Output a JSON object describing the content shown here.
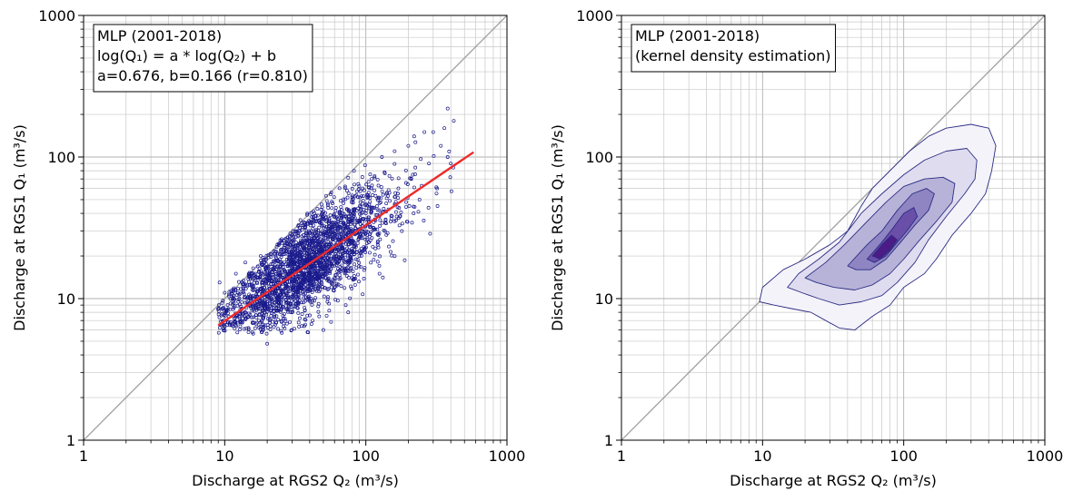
{
  "chart_data": [
    {
      "type": "scatter",
      "title": "",
      "xlabel": "Discharge at RGS2 Q₂ (m³/s)",
      "ylabel": "Discharge at RGS1 Q₁ (m³/s)",
      "xscale": "log",
      "yscale": "log",
      "xlim": [
        1,
        1000
      ],
      "ylim": [
        1,
        1000
      ],
      "xticks": [
        "1",
        "10",
        "100",
        "1000"
      ],
      "yticks": [
        "1",
        "10",
        "100",
        "1000"
      ],
      "grid": "major and minor",
      "annotation": {
        "line1": "MLP (2001-2018)",
        "line2": "log(Q₁) = a * log(Q₂) + b",
        "line3": "a=0.676, b=0.166 (r=0.810)"
      },
      "identity_line": {
        "x": [
          1,
          1000
        ],
        "y": [
          1,
          1000
        ],
        "color": "#a0a0a0"
      },
      "fit_line": {
        "a": 0.676,
        "b": 0.166,
        "x": [
          9,
          580
        ],
        "color": "#ee2a2a"
      },
      "scatter_points_shown": [
        [
          20,
          4.8
        ],
        [
          9.2,
          13
        ],
        [
          10,
          11
        ],
        [
          12,
          15
        ],
        [
          14,
          18
        ],
        [
          16,
          10
        ],
        [
          18,
          20
        ],
        [
          20,
          14
        ],
        [
          22,
          9
        ],
        [
          25,
          22
        ],
        [
          28,
          17
        ],
        [
          30,
          8
        ],
        [
          32,
          25
        ],
        [
          35,
          12
        ],
        [
          38,
          30
        ],
        [
          40,
          20
        ],
        [
          42,
          7
        ],
        [
          45,
          28
        ],
        [
          48,
          18
        ],
        [
          50,
          6
        ],
        [
          55,
          35
        ],
        [
          58,
          22
        ],
        [
          60,
          14
        ],
        [
          65,
          40
        ],
        [
          70,
          25
        ],
        [
          72,
          9
        ],
        [
          75,
          8
        ],
        [
          80,
          50
        ],
        [
          85,
          30
        ],
        [
          90,
          20
        ],
        [
          95,
          60
        ],
        [
          100,
          40
        ],
        [
          105,
          25
        ],
        [
          110,
          70
        ],
        [
          120,
          45
        ],
        [
          125,
          15
        ],
        [
          130,
          100
        ],
        [
          140,
          55
        ],
        [
          150,
          35
        ],
        [
          160,
          110
        ],
        [
          170,
          60
        ],
        [
          180,
          30
        ],
        [
          200,
          120
        ],
        [
          210,
          70
        ],
        [
          220,
          140
        ],
        [
          240,
          50
        ],
        [
          260,
          150
        ],
        [
          280,
          90
        ],
        [
          300,
          150
        ],
        [
          320,
          60
        ],
        [
          340,
          120
        ],
        [
          360,
          160
        ],
        [
          380,
          100
        ],
        [
          400,
          90
        ],
        [
          380,
          220
        ],
        [
          420,
          180
        ]
      ],
      "marker_color": "#1a1a8c"
    },
    {
      "type": "heatmap",
      "title": "",
      "xlabel": "Discharge at RGS2 Q₂ (m³/s)",
      "ylabel": "Discharge at RGS1 Q₁ (m³/s)",
      "xscale": "log",
      "yscale": "log",
      "xlim": [
        1,
        1000
      ],
      "ylim": [
        1,
        1000
      ],
      "xticks": [
        "1",
        "10",
        "100",
        "1000"
      ],
      "yticks": [
        "1",
        "10",
        "100",
        "1000"
      ],
      "grid": "major and minor",
      "annotation": {
        "line1": "MLP (2001-2018)",
        "line2": "(kernel density estimation)"
      },
      "identity_line": {
        "x": [
          1,
          1000
        ],
        "y": [
          1,
          1000
        ],
        "color": "#a0a0a0"
      },
      "contour_levels": [
        {
          "level": 1,
          "fill": "#f4f3fa",
          "polygon": [
            [
              9.5,
              9.5
            ],
            [
              10,
              12
            ],
            [
              14,
              16
            ],
            [
              20,
              19
            ],
            [
              30,
              24
            ],
            [
              40,
              30
            ],
            [
              50,
              45
            ],
            [
              60,
              60
            ],
            [
              80,
              80
            ],
            [
              110,
              110
            ],
            [
              150,
              140
            ],
            [
              200,
              160
            ],
            [
              300,
              170
            ],
            [
              400,
              160
            ],
            [
              450,
              120
            ],
            [
              420,
              80
            ],
            [
              380,
              55
            ],
            [
              300,
              40
            ],
            [
              220,
              28
            ],
            [
              170,
              19
            ],
            [
              140,
              15
            ],
            [
              100,
              12
            ],
            [
              80,
              9
            ],
            [
              60,
              7.5
            ],
            [
              45,
              6
            ],
            [
              35,
              6.2
            ],
            [
              28,
              7
            ],
            [
              22,
              8
            ],
            [
              16,
              8.5
            ],
            [
              12,
              9
            ]
          ]
        },
        {
          "level": 2,
          "fill": "#dedcee",
          "polygon": [
            [
              15,
              12
            ],
            [
              18,
              15
            ],
            [
              25,
              19
            ],
            [
              35,
              25
            ],
            [
              50,
              40
            ],
            [
              70,
              55
            ],
            [
              100,
              75
            ],
            [
              140,
              95
            ],
            [
              200,
              110
            ],
            [
              280,
              115
            ],
            [
              330,
              95
            ],
            [
              320,
              70
            ],
            [
              270,
              55
            ],
            [
              200,
              38
            ],
            [
              150,
              26
            ],
            [
              120,
              18
            ],
            [
              90,
              13
            ],
            [
              70,
              10.5
            ],
            [
              50,
              9.5
            ],
            [
              35,
              9
            ],
            [
              25,
              10
            ],
            [
              19,
              11
            ]
          ]
        },
        {
          "level": 3,
          "fill": "#b7b3d8",
          "polygon": [
            [
              20,
              14
            ],
            [
              28,
              18
            ],
            [
              38,
              24
            ],
            [
              55,
              35
            ],
            [
              75,
              48
            ],
            [
              100,
              62
            ],
            [
              140,
              70
            ],
            [
              190,
              72
            ],
            [
              230,
              65
            ],
            [
              220,
              48
            ],
            [
              170,
              35
            ],
            [
              130,
              26
            ],
            [
              100,
              19
            ],
            [
              80,
              15
            ],
            [
              60,
              12.5
            ],
            [
              45,
              11.5
            ],
            [
              32,
              12
            ],
            [
              24,
              13
            ]
          ]
        },
        {
          "level": 4,
          "fill": "#8e85c2",
          "polygon": [
            [
              40,
              17
            ],
            [
              55,
              24
            ],
            [
              70,
              30
            ],
            [
              90,
              42
            ],
            [
              115,
              55
            ],
            [
              145,
              60
            ],
            [
              165,
              55
            ],
            [
              150,
              42
            ],
            [
              120,
              33
            ],
            [
              95,
              25
            ],
            [
              75,
              19
            ],
            [
              58,
              16
            ],
            [
              46,
              16
            ]
          ]
        },
        {
          "level": 5,
          "fill": "#6a4fa8",
          "polygon": [
            [
              55,
              19
            ],
            [
              70,
              25
            ],
            [
              85,
              32
            ],
            [
              100,
              40
            ],
            [
              118,
              44
            ],
            [
              125,
              38
            ],
            [
              108,
              31
            ],
            [
              90,
              25
            ],
            [
              75,
              20
            ],
            [
              62,
              18
            ]
          ]
        },
        {
          "level": 6,
          "fill": "#4b1c86",
          "polygon": [
            [
              60,
              20
            ],
            [
              70,
              24
            ],
            [
              82,
              28
            ],
            [
              90,
              26
            ],
            [
              80,
              22
            ],
            [
              68,
              19
            ]
          ]
        }
      ],
      "contour_line_color": "#2c2c84"
    }
  ]
}
